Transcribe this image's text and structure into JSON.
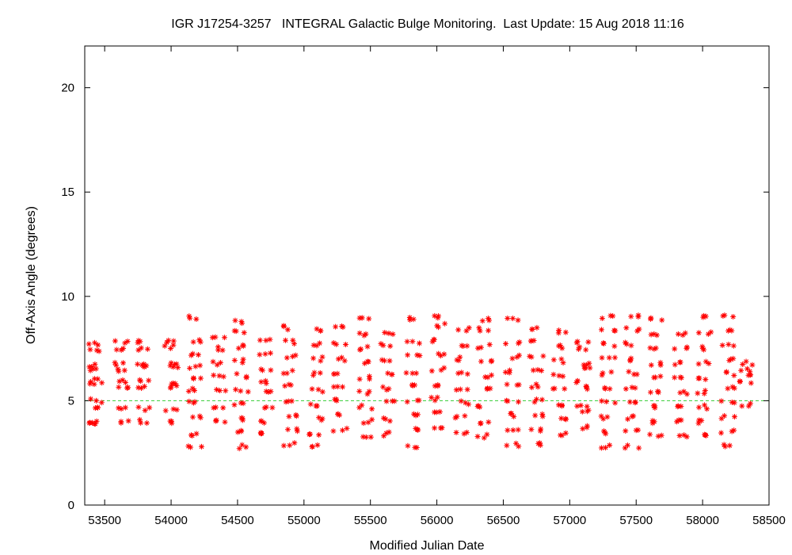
{
  "chart_data": {
    "type": "scatter",
    "title": "IGR J17254-3257   INTEGRAL Galactic Bulge Monitoring.  Last Update: 15 Aug 2018 11:16",
    "xlabel": "Modified Julian Date",
    "ylabel": "Off-Axis Angle (degrees)",
    "xlim": [
      53350,
      58500
    ],
    "ylim": [
      0,
      22
    ],
    "x_ticks": [
      53500,
      54000,
      54500,
      55000,
      55500,
      56000,
      56500,
      57000,
      57500,
      58000,
      58500
    ],
    "y_ticks": [
      0,
      5,
      10,
      15,
      20
    ],
    "grid": false,
    "reference_line": {
      "y": 5,
      "color": "#33cc33",
      "style": "dashed"
    },
    "marker_color": "#ff0000",
    "marker": "asterisk",
    "observation_windows": [
      {
        "x": 53430,
        "values": [
          3.9,
          4.0,
          4.6,
          5.0,
          5.8,
          6.0,
          6.5,
          6.7,
          7.4,
          7.7
        ]
      },
      {
        "x": 53630,
        "values": [
          4.0,
          4.6,
          5.7,
          5.9,
          6.5,
          6.8,
          7.5,
          7.8
        ]
      },
      {
        "x": 53800,
        "values": [
          4.0,
          4.6,
          5.6,
          5.9,
          6.6,
          6.8,
          7.5,
          7.8
        ]
      },
      {
        "x": 54000,
        "values": [
          4.0,
          4.6,
          5.7,
          5.9,
          6.6,
          6.8,
          7.6,
          7.8
        ]
      },
      {
        "x": 54180,
        "values": [
          2.8,
          3.4,
          4.2,
          4.9,
          5.5,
          6.0,
          6.6,
          7.2,
          7.9,
          9.0
        ]
      },
      {
        "x": 54360,
        "values": [
          4.0,
          4.7,
          5.5,
          6.2,
          6.8,
          7.5,
          8.0
        ]
      },
      {
        "x": 54530,
        "values": [
          2.8,
          3.5,
          4.1,
          4.8,
          5.5,
          6.2,
          6.9,
          7.6,
          8.3,
          8.8
        ]
      },
      {
        "x": 54720,
        "values": [
          3.4,
          4.0,
          4.7,
          5.4,
          5.9,
          6.5,
          7.2,
          7.9
        ]
      },
      {
        "x": 54900,
        "values": [
          2.9,
          3.6,
          4.3,
          5.0,
          5.7,
          6.4,
          7.1,
          7.8,
          8.5
        ]
      },
      {
        "x": 55090,
        "values": [
          2.8,
          3.4,
          4.1,
          4.8,
          5.5,
          6.3,
          7.0,
          7.7,
          8.4
        ]
      },
      {
        "x": 55270,
        "values": [
          3.6,
          4.3,
          5.0,
          5.6,
          6.3,
          7.0,
          7.7,
          8.6
        ]
      },
      {
        "x": 55460,
        "values": [
          3.3,
          4.0,
          4.7,
          5.4,
          6.1,
          6.8,
          7.5,
          8.2,
          8.9
        ]
      },
      {
        "x": 55630,
        "values": [
          3.4,
          4.1,
          4.9,
          5.6,
          6.3,
          7.0,
          7.7,
          8.2
        ]
      },
      {
        "x": 55820,
        "values": [
          2.8,
          3.6,
          4.3,
          5.0,
          5.7,
          6.4,
          7.1,
          7.8,
          8.9
        ]
      },
      {
        "x": 56010,
        "values": [
          3.7,
          4.4,
          5.1,
          5.8,
          6.5,
          7.2,
          7.9,
          8.6,
          9.0
        ]
      },
      {
        "x": 56190,
        "values": [
          3.5,
          4.2,
          4.9,
          5.6,
          6.3,
          7.0,
          7.7,
          8.4
        ]
      },
      {
        "x": 56360,
        "values": [
          3.3,
          4.0,
          4.7,
          5.5,
          6.2,
          6.9,
          7.6,
          8.4,
          8.9
        ]
      },
      {
        "x": 56570,
        "values": [
          2.9,
          3.6,
          4.3,
          5.0,
          5.7,
          6.4,
          7.1,
          7.8,
          8.9
        ]
      },
      {
        "x": 56750,
        "values": [
          2.9,
          3.6,
          4.3,
          5.0,
          5.7,
          6.4,
          7.1,
          7.8,
          8.5
        ]
      },
      {
        "x": 56920,
        "values": [
          3.4,
          4.1,
          4.8,
          5.5,
          6.2,
          6.9,
          7.6,
          8.3
        ]
      },
      {
        "x": 57100,
        "values": [
          3.7,
          4.5,
          4.8,
          5.6,
          5.9,
          6.6,
          6.8,
          7.5,
          7.8
        ]
      },
      {
        "x": 57290,
        "values": [
          2.8,
          3.5,
          4.2,
          4.9,
          5.6,
          6.3,
          7.0,
          7.7,
          8.4,
          9.0
        ]
      },
      {
        "x": 57470,
        "values": [
          2.8,
          3.5,
          4.2,
          4.9,
          5.6,
          6.3,
          7.0,
          7.7,
          8.4,
          9.0
        ]
      },
      {
        "x": 57650,
        "values": [
          3.3,
          4.0,
          4.7,
          5.4,
          6.1,
          6.8,
          7.5,
          8.2,
          8.9
        ]
      },
      {
        "x": 57830,
        "values": [
          3.3,
          4.0,
          4.7,
          5.4,
          6.1,
          6.8,
          7.5,
          8.2
        ]
      },
      {
        "x": 58010,
        "values": [
          3.3,
          4.0,
          4.7,
          5.4,
          6.1,
          6.8,
          7.5,
          8.2,
          9.0
        ]
      },
      {
        "x": 58190,
        "values": [
          2.8,
          3.5,
          4.2,
          4.9,
          5.6,
          6.3,
          7.0,
          7.7,
          8.4,
          9.0
        ]
      },
      {
        "x": 58330,
        "values": [
          4.8,
          5.9,
          6.2,
          6.5,
          6.8
        ]
      }
    ]
  }
}
